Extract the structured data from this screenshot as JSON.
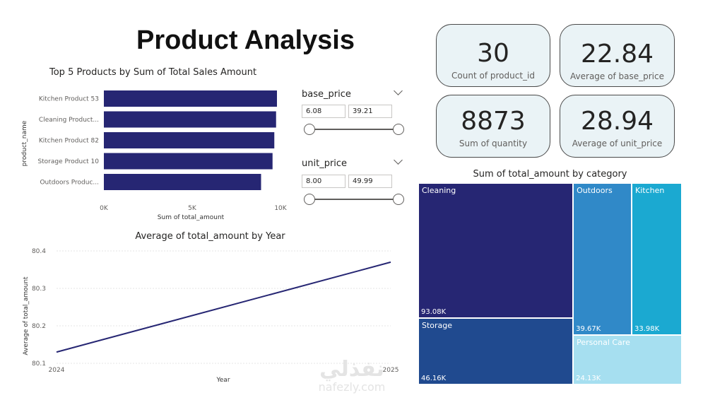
{
  "title": "Product Analysis",
  "cards": [
    {
      "value": "30",
      "label": "Count of product_id"
    },
    {
      "value": "22.84",
      "label": "Average of base_price"
    },
    {
      "value": "8873",
      "label": "Sum of quantity"
    },
    {
      "value": "28.94",
      "label": "Average of unit_price"
    }
  ],
  "slicers": {
    "base_price": {
      "title": "base_price",
      "min": "6.08",
      "max": "39.21"
    },
    "unit_price": {
      "title": "unit_price",
      "min": "8.00",
      "max": "49.99"
    }
  },
  "watermark": {
    "arabic": "نفذلي",
    "latin": "nafezly.com"
  },
  "colors": {
    "bar": "#262673",
    "line": "#262673"
  },
  "chart_data": [
    {
      "type": "bar",
      "orientation": "horizontal",
      "title": "Top 5 Products by Sum of Total Sales Amount",
      "xlabel": "Sum of total_amount",
      "ylabel": "product_name",
      "categories": [
        "Kitchen Product 53",
        "Cleaning Product...",
        "Kitchen Product 82",
        "Storage Product 10",
        "Outdoors Produc..."
      ],
      "values": [
        9800,
        9750,
        9650,
        9550,
        8900
      ],
      "xlim": [
        0,
        10000
      ],
      "xticks": [
        "0K",
        "5K",
        "10K"
      ],
      "xtick_values": [
        0,
        5000,
        10000
      ]
    },
    {
      "type": "line",
      "title": "Average of total_amount by Year",
      "xlabel": "Year",
      "ylabel": "Average of total_amount",
      "x": [
        "2024",
        "2025"
      ],
      "values": [
        80.13,
        80.37
      ],
      "ylim": [
        80.1,
        80.4
      ],
      "yticks": [
        "80.1",
        "80.2",
        "80.3",
        "80.4"
      ],
      "grid": true
    },
    {
      "type": "treemap",
      "title": "Sum of total_amount by category",
      "items": [
        {
          "name": "Cleaning",
          "value": 93080,
          "label": "93.08K",
          "color": "#262673"
        },
        {
          "name": "Storage",
          "value": 46160,
          "label": "46.16K",
          "color": "#204a8f"
        },
        {
          "name": "Outdoors",
          "value": 39670,
          "label": "39.67K",
          "color": "#3089c8"
        },
        {
          "name": "Kitchen",
          "value": 33980,
          "label": "33.98K",
          "color": "#1ba9d1"
        },
        {
          "name": "Personal Care",
          "value": 24130,
          "label": "24.13K",
          "color": "#a6dff0"
        }
      ]
    }
  ]
}
